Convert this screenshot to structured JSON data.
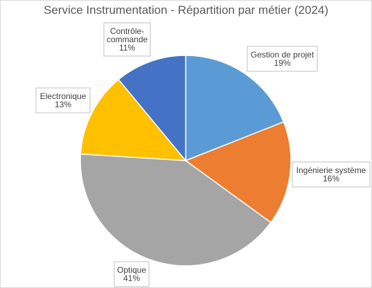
{
  "chart_data": {
    "type": "pie",
    "title": "Service Instrumentation - Répartition par métier (2024)",
    "slices": [
      {
        "label": "Gestion de projet",
        "percent_label": "19%",
        "value": 19,
        "color": "#5B9BD5"
      },
      {
        "label": "Ingénierie système",
        "percent_label": "16%",
        "value": 16,
        "color": "#ED7D31"
      },
      {
        "label": "Optique",
        "percent_label": "41%",
        "value": 41,
        "color": "#A5A5A5"
      },
      {
        "label": "Electronique",
        "percent_label": "13%",
        "value": 13,
        "color": "#FFC000"
      },
      {
        "label": "Contrôle-commande",
        "label_lines": [
          "Contrôle-",
          "commande"
        ],
        "percent_label": "11%",
        "value": 11,
        "color": "#4472C4"
      }
    ],
    "start_angle_deg": 0,
    "direction": "clockwise",
    "legend": "none",
    "data_labels": "category and percentage in callout boxes"
  }
}
